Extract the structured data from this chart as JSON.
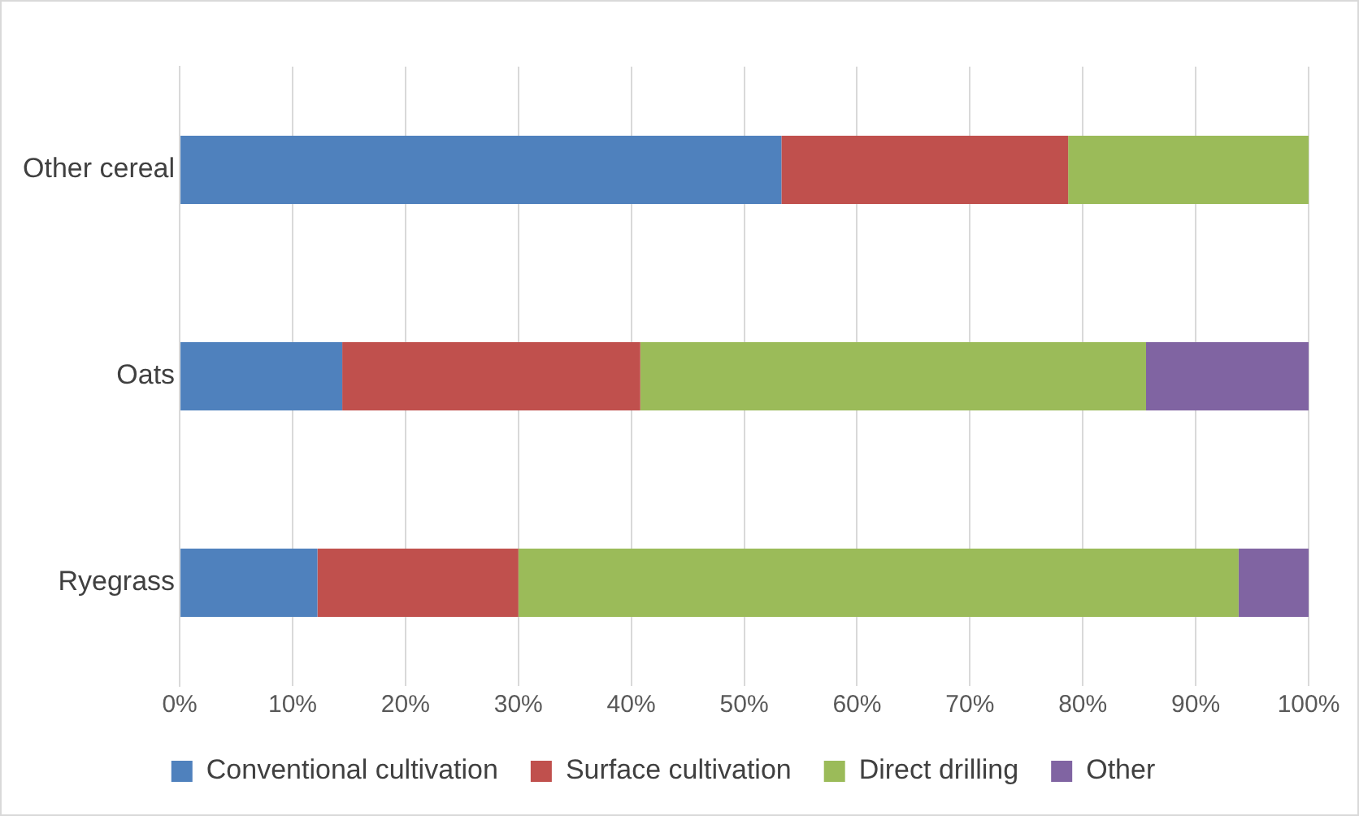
{
  "chart_data": {
    "type": "bar",
    "orientation": "horizontal",
    "stacked": true,
    "categories": [
      "Other cereal",
      "Oats",
      "Ryegrass"
    ],
    "series": [
      {
        "name": "Conventional cultivation",
        "color": "#4f81bd",
        "values": [
          53.3,
          14.4,
          12.2
        ]
      },
      {
        "name": "Surface cultivation",
        "color": "#c0504d",
        "values": [
          25.4,
          26.4,
          17.8
        ]
      },
      {
        "name": "Direct drilling",
        "color": "#9bbb59",
        "values": [
          21.3,
          44.8,
          63.8
        ]
      },
      {
        "name": "Other",
        "color": "#8064a2",
        "values": [
          0,
          14.4,
          6.2
        ]
      }
    ],
    "xlim": [
      0,
      100
    ],
    "xticks": [
      {
        "value": 0,
        "label": "0%"
      },
      {
        "value": 10,
        "label": "10%"
      },
      {
        "value": 20,
        "label": "20%"
      },
      {
        "value": 30,
        "label": "30%"
      },
      {
        "value": 40,
        "label": "40%"
      },
      {
        "value": 50,
        "label": "50%"
      },
      {
        "value": 60,
        "label": "60%"
      },
      {
        "value": 70,
        "label": "70%"
      },
      {
        "value": 80,
        "label": "80%"
      },
      {
        "value": 90,
        "label": "90%"
      },
      {
        "value": 100,
        "label": "100%"
      }
    ],
    "grid": "x",
    "legend": "bottom"
  }
}
